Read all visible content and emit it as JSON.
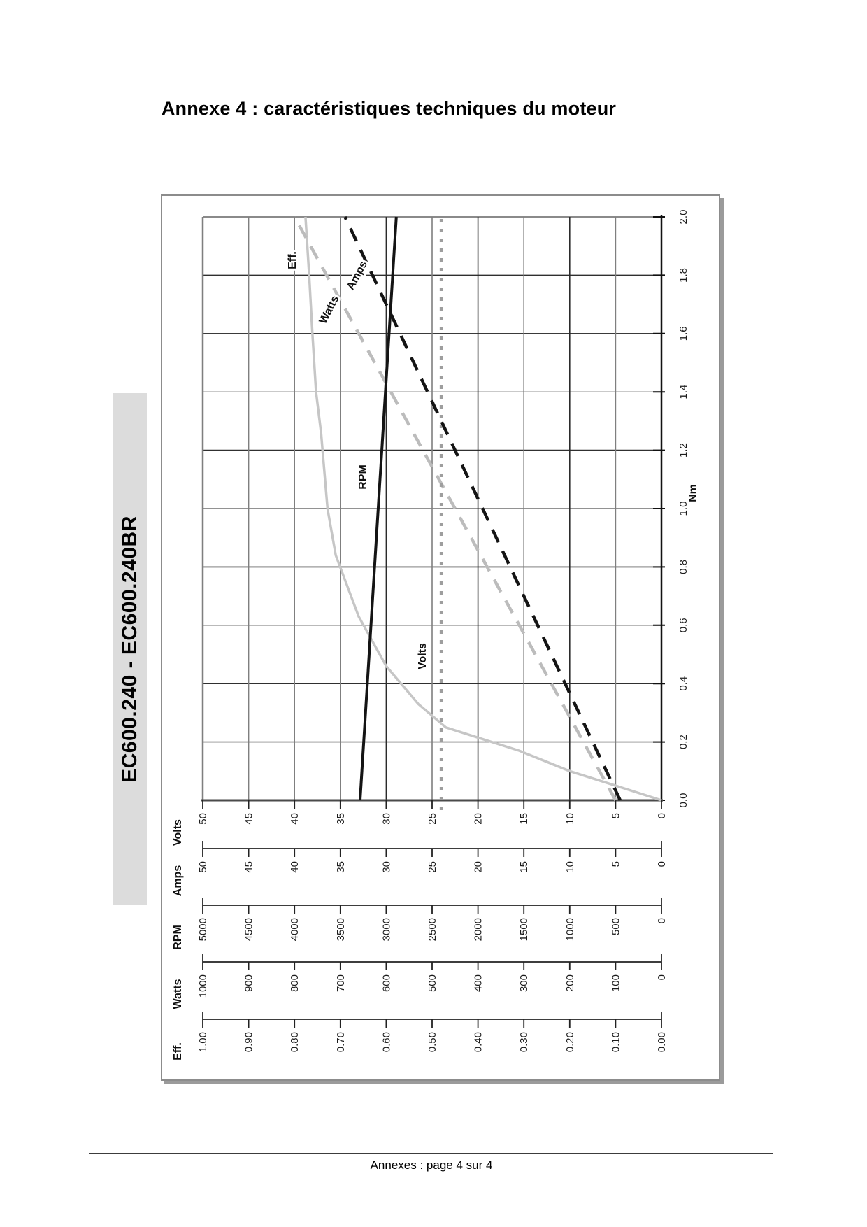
{
  "page": {
    "title": "Annexe 4 : caractéristiques techniques du moteur",
    "footer": "Annexes : page 4 sur 4"
  },
  "chart": {
    "side_title": "EC600.240 - EC600.240BR",
    "x_axis": {
      "title": "Nm",
      "min": 0.0,
      "max": 2.0,
      "ticks": [
        "2.0",
        "1.8",
        "1.6",
        "1.4",
        "1.2",
        "1.0",
        "0.8",
        "0.6",
        "0.4",
        "0.2",
        "0.0"
      ]
    },
    "value_axes": [
      {
        "name": "Volts",
        "max": 50,
        "ticks": [
          "50",
          "45",
          "40",
          "35",
          "30",
          "25",
          "20",
          "15",
          "10",
          "5",
          "0"
        ]
      },
      {
        "name": "Amps",
        "max": 50,
        "ticks": [
          "50",
          "45",
          "40",
          "35",
          "30",
          "25",
          "20",
          "15",
          "10",
          "5",
          "0"
        ]
      },
      {
        "name": "RPM",
        "max": 5000,
        "ticks": [
          "5000",
          "4500",
          "4000",
          "3500",
          "3000",
          "2500",
          "2000",
          "1500",
          "1000",
          "500",
          "0"
        ]
      },
      {
        "name": "Watts",
        "max": 1000,
        "ticks": [
          "1000",
          "900",
          "800",
          "700",
          "600",
          "500",
          "400",
          "300",
          "200",
          "100",
          "0"
        ]
      },
      {
        "name": "Eff.",
        "max": 1.0,
        "ticks": [
          "1.00",
          "0.90",
          "0.80",
          "0.70",
          "0.60",
          "0.50",
          "0.40",
          "0.30",
          "0.20",
          "0.10",
          "0.00"
        ]
      }
    ]
  },
  "chart_data": {
    "type": "line",
    "title": "EC600.240 - EC600.240BR",
    "xlabel": "Nm",
    "x_range": [
      0.0,
      2.0
    ],
    "grid": true,
    "orientation": "rotated 90deg CCW on page: Nm axis vertical (0.0 bottom to 2.0 top), value axes horizontal (max at left, 0 at right)",
    "legend_position": "inline curve labels",
    "series": [
      {
        "name": "Eff.",
        "axis": "Eff.",
        "axis_max": 1.0,
        "style": "solid light gray",
        "points": [
          [
            0.0,
            0.0
          ],
          [
            0.05,
            0.1
          ],
          [
            0.1,
            0.2
          ],
          [
            0.17,
            0.31
          ],
          [
            0.25,
            0.47
          ],
          [
            0.33,
            0.53
          ],
          [
            0.46,
            0.6
          ],
          [
            0.63,
            0.66
          ],
          [
            0.84,
            0.71
          ],
          [
            1.0,
            0.728
          ],
          [
            1.26,
            0.742
          ],
          [
            1.4,
            0.753
          ],
          [
            1.6,
            0.761
          ],
          [
            1.8,
            0.768
          ],
          [
            2.0,
            0.776
          ]
        ]
      },
      {
        "name": "Watts",
        "axis": "Watts",
        "axis_max": 1000,
        "style": "dashed light gray",
        "points": [
          [
            0.0,
            100
          ],
          [
            2.0,
            800
          ]
        ]
      },
      {
        "name": "Volts",
        "axis": "Volts",
        "axis_max": 50,
        "style": "dotted gray",
        "points": [
          [
            0.0,
            24
          ],
          [
            2.0,
            24
          ]
        ]
      },
      {
        "name": "Amps",
        "axis": "Amps",
        "axis_max": 50,
        "style": "dashed black",
        "points": [
          [
            0.0,
            4.5
          ],
          [
            2.0,
            34.5
          ]
        ]
      },
      {
        "name": "RPM",
        "axis": "RPM",
        "axis_max": 5000,
        "style": "solid black",
        "points": [
          [
            0.0,
            3285
          ],
          [
            2.0,
            2890
          ]
        ]
      }
    ]
  }
}
